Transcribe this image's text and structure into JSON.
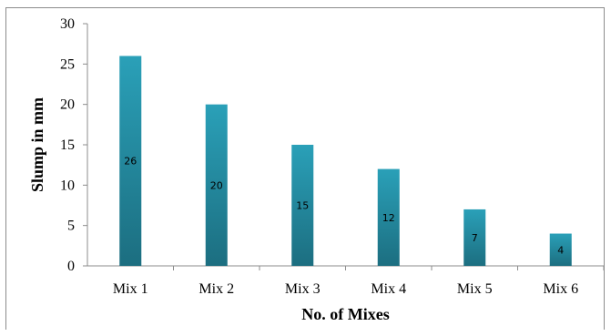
{
  "chart_data": {
    "type": "bar",
    "categories": [
      "Mix 1",
      "Mix 2",
      "Mix 3",
      "Mix 4",
      "Mix 5",
      "Mix 6"
    ],
    "values": [
      26,
      20,
      15,
      12,
      7,
      4
    ],
    "data_labels": [
      "26",
      "20",
      "15",
      "12",
      "7",
      "4"
    ],
    "xlabel": "No. of Mixes",
    "ylabel": "Slump in mm",
    "ylim": [
      0,
      30
    ],
    "yticks": [
      0,
      5,
      10,
      15,
      20,
      25,
      30
    ],
    "grid": false,
    "legend": "none",
    "bar_color_top": "#2aa0b8",
    "bar_color_bottom": "#1c6e80"
  }
}
